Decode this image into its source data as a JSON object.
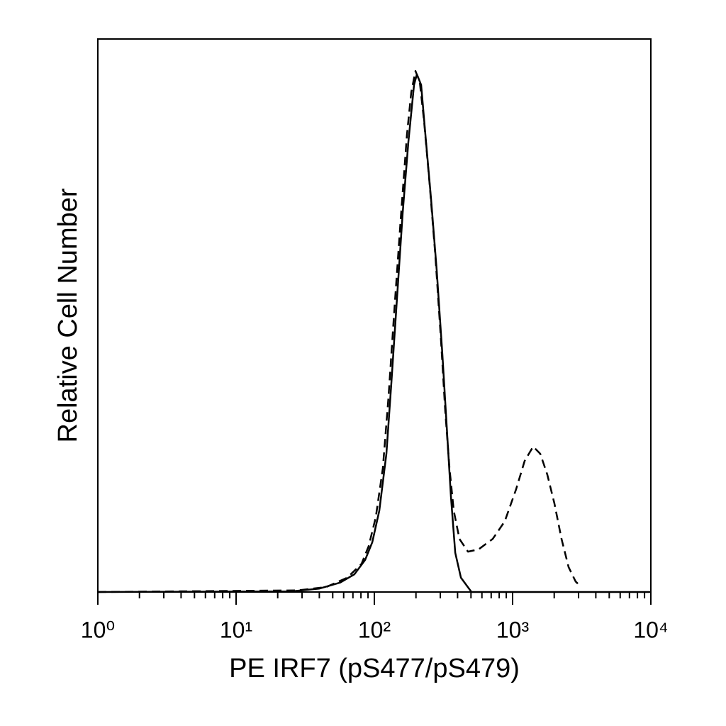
{
  "chart_data": {
    "type": "line",
    "x_label": "PE IRF7 (pS477/pS479)",
    "y_label": "Relative Cell Number",
    "x_scale": "log",
    "xlim": [
      1,
      10000
    ],
    "xticks": [
      {
        "value": 1,
        "label": "10⁰"
      },
      {
        "value": 10,
        "label": "10¹"
      },
      {
        "value": 100,
        "label": "10²"
      },
      {
        "value": 1000,
        "label": "10³"
      },
      {
        "value": 10000,
        "label": "10⁴"
      }
    ],
    "xminorticks": [
      2,
      3,
      4,
      5,
      6,
      7,
      8,
      9,
      20,
      30,
      40,
      50,
      60,
      70,
      80,
      90,
      200,
      300,
      400,
      500,
      600,
      700,
      800,
      900,
      2000,
      3000,
      4000,
      5000,
      6000,
      7000,
      8000,
      9000
    ],
    "ylim": [
      0,
      100
    ],
    "series": [
      {
        "line_style": "solid",
        "color": "#000000",
        "x": [
          1,
          24.8,
          39.8,
          56.7,
          71.8,
          85.8,
          96.6,
          108.6,
          122.3,
          132.8,
          145.9,
          160.4,
          176.3,
          193.8,
          203.1,
          217.9,
          233.9,
          257.0,
          282.5,
          310.5,
          333.4,
          358.1,
          384.5,
          422.7,
          504.4,
          10000
        ],
        "values": [
          0,
          0.1,
          0.6,
          1.7,
          3.2,
          5.8,
          9.0,
          14.7,
          25.0,
          37.8,
          53.2,
          68.6,
          81.4,
          91.7,
          93.6,
          91.7,
          82.7,
          71.2,
          58.3,
          42.9,
          30.1,
          17.3,
          7.1,
          2.6,
          0,
          0
        ]
      },
      {
        "line_style": "dashed",
        "color": "#000000",
        "x": [
          1,
          27.9,
          44.8,
          63.8,
          80.9,
          91.0,
          102.4,
          115.2,
          126.7,
          139.2,
          154.9,
          172.2,
          184.9,
          198.3,
          213.0,
          228.6,
          251.2,
          276.1,
          303.5,
          325.6,
          349.7,
          375.3,
          412.4,
          475.4,
          567.4,
          718.4,
          878.6,
          1061,
          1222,
          1409,
          1585,
          1783,
          2008,
          2259,
          2541,
          2858,
          3141
        ],
        "values": [
          0,
          0.3,
          0.9,
          2.6,
          5.1,
          8.3,
          13.5,
          22.4,
          35.3,
          50.6,
          67.3,
          82.7,
          90.4,
          94.2,
          92.3,
          85.3,
          73.7,
          60.9,
          45.5,
          32.7,
          22.4,
          14.7,
          9.6,
          7.3,
          7.7,
          9.6,
          12.8,
          18.6,
          23.7,
          26.3,
          25.0,
          21.2,
          16.0,
          9.6,
          4.5,
          1.9,
          0.9
        ]
      }
    ]
  }
}
